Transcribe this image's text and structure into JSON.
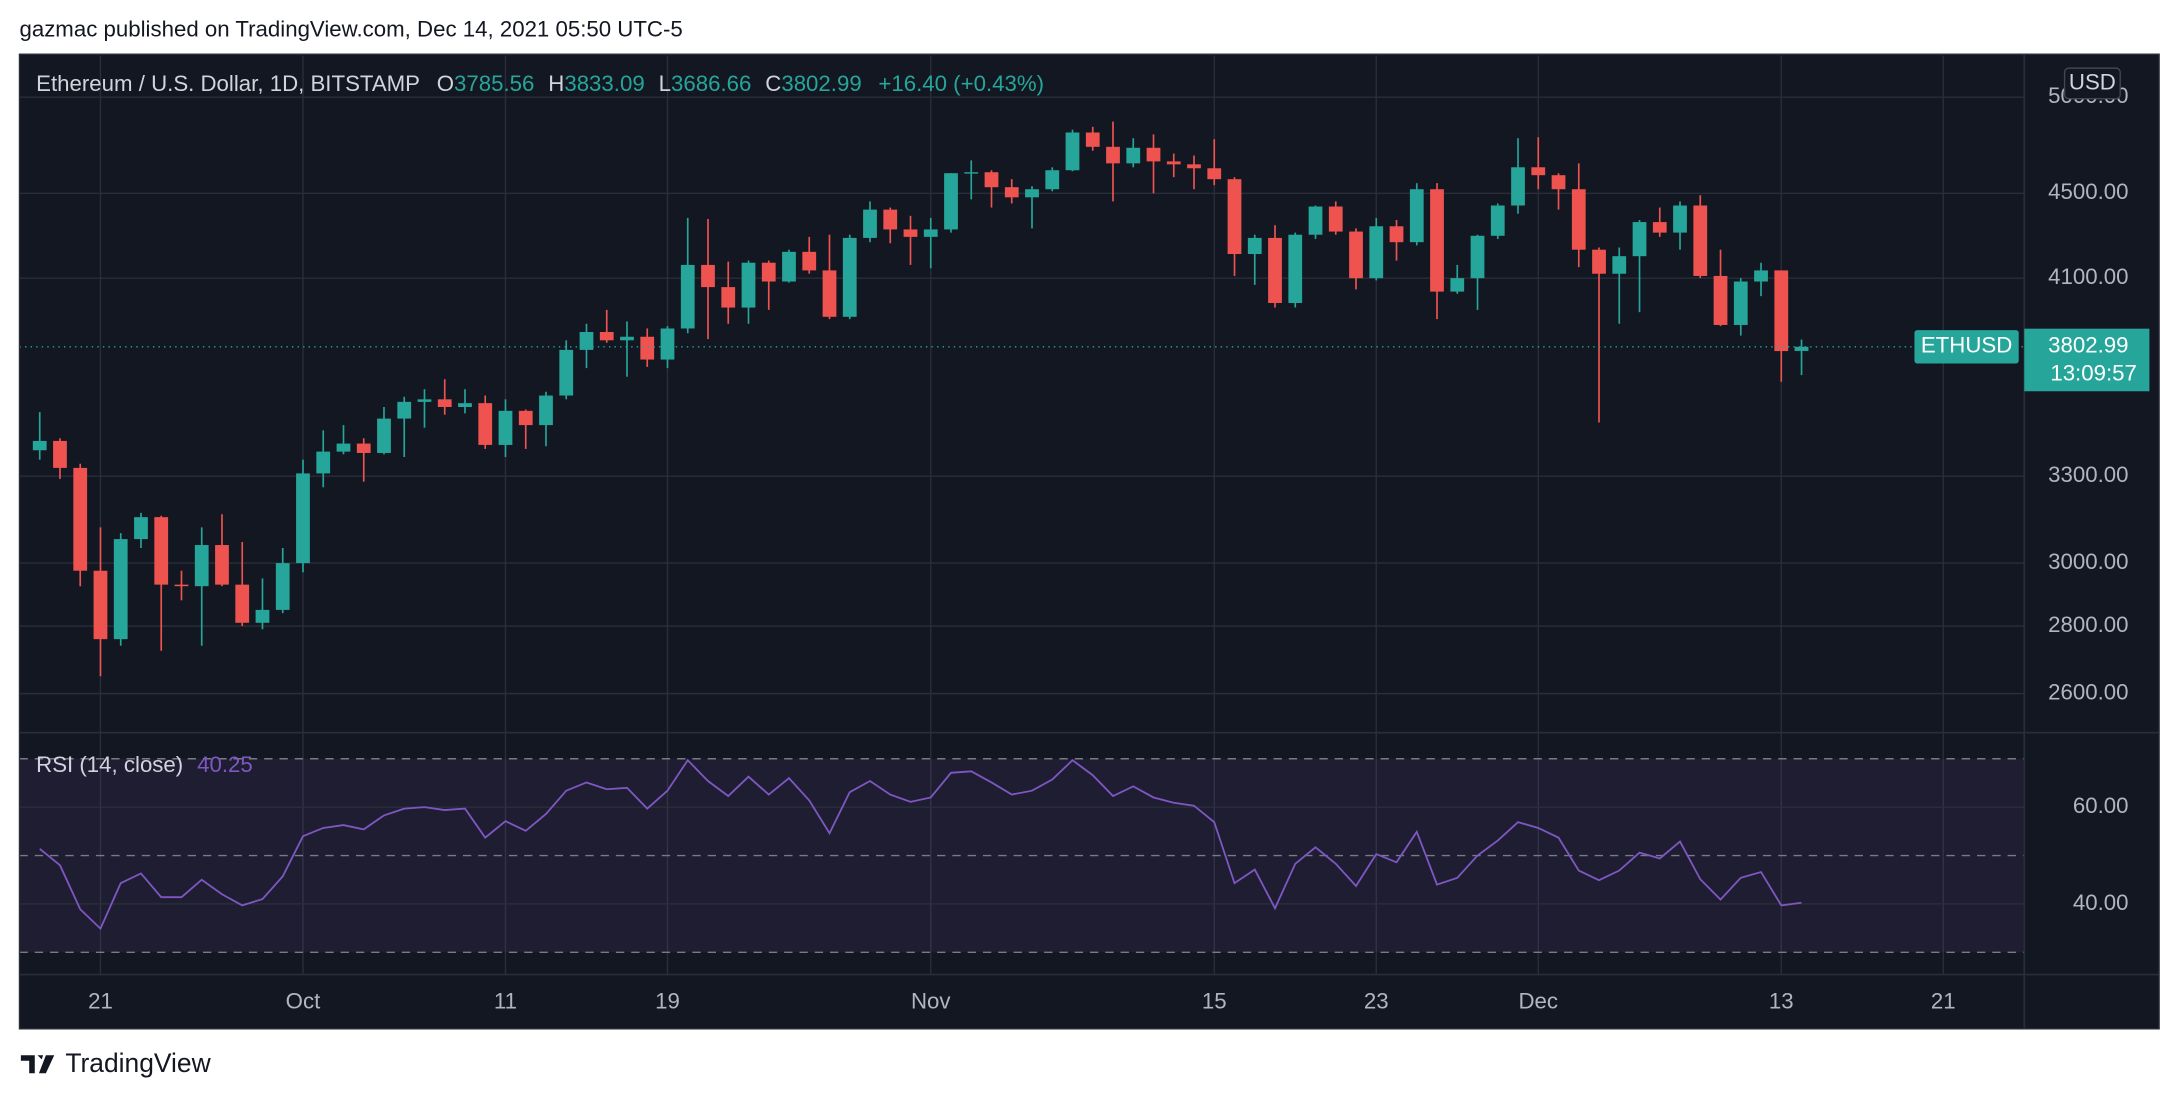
{
  "header": {
    "text": "gazmac published on TradingView.com, Dec 14, 2021 05:50 UTC-5"
  },
  "footer": {
    "brand": "TradingView"
  },
  "chart_data": [
    {
      "type": "candlestick",
      "title": "Ethereum / U.S. Dollar, 1D, BITSTAMP",
      "symbol": "ETHUSD",
      "currency": "USD",
      "legend_labels": {
        "open": "O",
        "high": "H",
        "low": "L",
        "close": "C"
      },
      "change_label": "+16.40 (+0.43%)",
      "countdown": "13:09:57",
      "up_color": "#26a69a",
      "down_color": "#ef5350",
      "log_scale": true,
      "grid": true,
      "x": [
        "2021-09-18",
        "2021-09-19",
        "2021-09-20",
        "2021-09-21",
        "2021-09-22",
        "2021-09-23",
        "2021-09-24",
        "2021-09-25",
        "2021-09-26",
        "2021-09-27",
        "2021-09-28",
        "2021-09-29",
        "2021-09-30",
        "2021-10-01",
        "2021-10-02",
        "2021-10-03",
        "2021-10-04",
        "2021-10-05",
        "2021-10-06",
        "2021-10-07",
        "2021-10-08",
        "2021-10-09",
        "2021-10-10",
        "2021-10-11",
        "2021-10-12",
        "2021-10-13",
        "2021-10-14",
        "2021-10-15",
        "2021-10-16",
        "2021-10-17",
        "2021-10-18",
        "2021-10-19",
        "2021-10-20",
        "2021-10-21",
        "2021-10-22",
        "2021-10-23",
        "2021-10-24",
        "2021-10-25",
        "2021-10-26",
        "2021-10-27",
        "2021-10-28",
        "2021-10-29",
        "2021-10-30",
        "2021-10-31",
        "2021-11-01",
        "2021-11-02",
        "2021-11-03",
        "2021-11-04",
        "2021-11-05",
        "2021-11-06",
        "2021-11-07",
        "2021-11-08",
        "2021-11-09",
        "2021-11-10",
        "2021-11-11",
        "2021-11-12",
        "2021-11-13",
        "2021-11-14",
        "2021-11-15",
        "2021-11-16",
        "2021-11-17",
        "2021-11-18",
        "2021-11-19",
        "2021-11-20",
        "2021-11-21",
        "2021-11-22",
        "2021-11-23",
        "2021-11-24",
        "2021-11-25",
        "2021-11-26",
        "2021-11-27",
        "2021-11-28",
        "2021-11-29",
        "2021-11-30",
        "2021-12-01",
        "2021-12-02",
        "2021-12-03",
        "2021-12-04",
        "2021-12-05",
        "2021-12-06",
        "2021-12-07",
        "2021-12-08",
        "2021-12-09",
        "2021-12-10",
        "2021-12-11",
        "2021-12-12",
        "2021-12-13",
        "2021-12-14"
      ],
      "open": [
        3395,
        3430,
        3330,
        2975,
        2760,
        3080,
        3155,
        2930,
        2925,
        3060,
        2930,
        2810,
        2850,
        3000,
        3310,
        3390,
        3420,
        3385,
        3515,
        3580,
        3590,
        3560,
        3575,
        3415,
        3545,
        3490,
        3605,
        3790,
        3865,
        3830,
        3845,
        3750,
        3880,
        4160,
        4060,
        3970,
        4170,
        4085,
        4220,
        4135,
        3930,
        4285,
        4420,
        4325,
        4290,
        4325,
        4600,
        4605,
        4530,
        4480,
        4520,
        4615,
        4810,
        4735,
        4650,
        4730,
        4660,
        4645,
        4625,
        4570,
        4210,
        4285,
        3990,
        4300,
        4435,
        4315,
        4100,
        4340,
        4265,
        4520,
        4040,
        4100,
        4295,
        4440,
        4630,
        4590,
        4520,
        4230,
        4120,
        4200,
        4360,
        4310,
        4440,
        4110,
        3895,
        4085,
        4135,
        3785.56
      ],
      "high": [
        3540,
        3440,
        3345,
        3120,
        3100,
        3170,
        3160,
        2975,
        3120,
        3165,
        3070,
        2950,
        3050,
        3360,
        3470,
        3490,
        3440,
        3560,
        3600,
        3630,
        3670,
        3630,
        3605,
        3590,
        3550,
        3620,
        3830,
        3900,
        3960,
        3910,
        3880,
        3890,
        4380,
        4375,
        4175,
        4180,
        4180,
        4230,
        4290,
        4300,
        4300,
        4460,
        4430,
        4390,
        4380,
        4600,
        4665,
        4615,
        4570,
        4535,
        4630,
        4825,
        4840,
        4868,
        4780,
        4800,
        4700,
        4690,
        4775,
        4580,
        4300,
        4345,
        4310,
        4440,
        4460,
        4330,
        4380,
        4370,
        4550,
        4550,
        4160,
        4300,
        4450,
        4780,
        4785,
        4600,
        4650,
        4240,
        4240,
        4370,
        4430,
        4460,
        4490,
        4230,
        4100,
        4170,
        4135,
        3833.09
      ],
      "low": [
        3360,
        3290,
        2925,
        2650,
        2740,
        3050,
        2725,
        2880,
        2740,
        2925,
        2800,
        2790,
        2840,
        2970,
        3260,
        3380,
        3280,
        3380,
        3370,
        3480,
        3530,
        3535,
        3400,
        3370,
        3400,
        3410,
        3590,
        3715,
        3820,
        3680,
        3720,
        3715,
        3860,
        3835,
        3900,
        3900,
        3960,
        4080,
        4120,
        3920,
        3920,
        4265,
        4260,
        4160,
        4145,
        4310,
        4470,
        4430,
        4450,
        4330,
        4510,
        4610,
        4715,
        4460,
        4630,
        4500,
        4580,
        4520,
        4540,
        4110,
        4070,
        3970,
        3970,
        4280,
        4300,
        4050,
        4090,
        4180,
        4250,
        3920,
        4030,
        3960,
        4280,
        4400,
        4520,
        4420,
        4150,
        3500,
        3900,
        3950,
        4290,
        4230,
        4100,
        3890,
        3850,
        4020,
        3660,
        3686.66
      ],
      "close": [
        3430,
        3330,
        2975,
        2760,
        3080,
        3155,
        2930,
        2925,
        3060,
        2930,
        2810,
        2850,
        3000,
        3310,
        3390,
        3420,
        3385,
        3515,
        3580,
        3590,
        3560,
        3575,
        3415,
        3545,
        3490,
        3605,
        3790,
        3865,
        3830,
        3845,
        3750,
        3880,
        4160,
        4060,
        3970,
        4170,
        4085,
        4220,
        4135,
        3930,
        4285,
        4420,
        4325,
        4290,
        4325,
        4600,
        4605,
        4530,
        4480,
        4520,
        4615,
        4810,
        4735,
        4650,
        4730,
        4660,
        4645,
        4625,
        4570,
        4210,
        4285,
        3990,
        4300,
        4435,
        4315,
        4100,
        4340,
        4265,
        4520,
        4040,
        4100,
        4295,
        4440,
        4630,
        4590,
        4520,
        4230,
        4120,
        4200,
        4360,
        4310,
        4440,
        4110,
        3895,
        4085,
        4135,
        3785,
        3802.99
      ],
      "xlim": [
        "2021-09-17",
        "2021-12-25"
      ],
      "xticks": [
        {
          "value": "2021-09-21",
          "label": "21"
        },
        {
          "value": "2021-10-01",
          "label": "Oct"
        },
        {
          "value": "2021-10-11",
          "label": "11"
        },
        {
          "value": "2021-10-19",
          "label": "19"
        },
        {
          "value": "2021-11-01",
          "label": "Nov"
        },
        {
          "value": "2021-11-15",
          "label": "15"
        },
        {
          "value": "2021-11-23",
          "label": "23"
        },
        {
          "value": "2021-12-01",
          "label": "Dec"
        },
        {
          "value": "2021-12-13",
          "label": "13"
        },
        {
          "value": "2021-12-21",
          "label": "21"
        }
      ],
      "ylim": [
        2491,
        5233
      ],
      "yticks": [
        {
          "value": 2600,
          "label": "2600.00"
        },
        {
          "value": 2800,
          "label": "2800.00"
        },
        {
          "value": 3000,
          "label": "3000.00"
        },
        {
          "value": 3300,
          "label": "3300.00"
        },
        {
          "value": 4100,
          "label": "4100.00"
        },
        {
          "value": 4500,
          "label": "4500.00"
        },
        {
          "value": 5000,
          "label": "5000.00"
        }
      ]
    },
    {
      "type": "line",
      "title": "RSI (14, close)",
      "color": "#7e57c2",
      "grid": true,
      "values": [
        51.4,
        48,
        38.9,
        34.9,
        44.3,
        46.3,
        41.4,
        41.4,
        45,
        42,
        39.7,
        41,
        45.7,
        54,
        55.7,
        56.3,
        55.4,
        58.3,
        59.7,
        60,
        59.4,
        59.7,
        53.7,
        57.1,
        55.1,
        58.6,
        63.4,
        65.1,
        63.7,
        64,
        59.7,
        63.4,
        69.7,
        65.4,
        62.3,
        66.3,
        62.6,
        66,
        61.4,
        54.6,
        63.1,
        65.4,
        62.6,
        61.1,
        62,
        67.1,
        67.4,
        65.1,
        62.6,
        63.4,
        65.7,
        69.7,
        66.6,
        62.3,
        64.3,
        62,
        60.9,
        60.3,
        56.9,
        44.3,
        47.1,
        39.1,
        48.3,
        51.7,
        48.3,
        43.7,
        50.3,
        48.6,
        54.9,
        44,
        45.4,
        50,
        53.1,
        56.9,
        55.7,
        53.7,
        46.9,
        44.9,
        46.9,
        50.6,
        49.4,
        52.9,
        45.1,
        40.9,
        45.4,
        46.6,
        39.7,
        40.25
      ],
      "bands": [
        30,
        50,
        70
      ],
      "ylim": [
        25.4,
        75.1
      ],
      "yticks": [
        {
          "value": 40,
          "label": "40.00"
        },
        {
          "value": 60,
          "label": "60.00"
        }
      ]
    }
  ]
}
